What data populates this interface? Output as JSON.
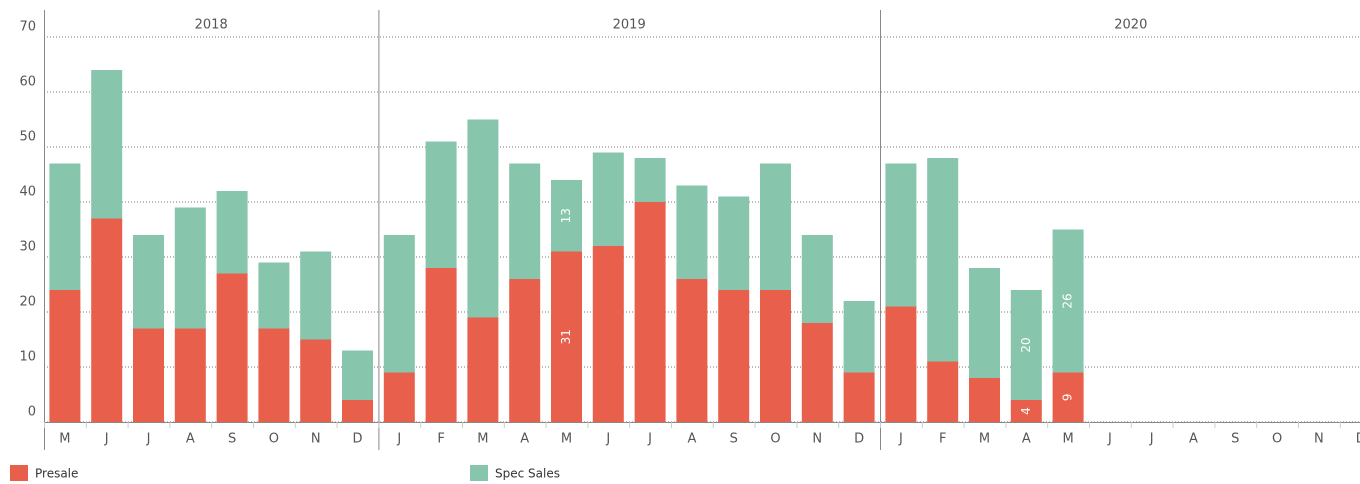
{
  "chart_data": {
    "type": "bar",
    "stacked": true,
    "grid": true,
    "legend": "bottom",
    "ylim": [
      0,
      70
    ],
    "yticks": [
      0,
      10,
      20,
      30,
      40,
      50,
      60,
      70
    ],
    "panels": [
      {
        "title": "2018",
        "categories": [
          "M",
          "J",
          "J",
          "A",
          "S",
          "O",
          "N",
          "D"
        ]
      },
      {
        "title": "2019",
        "categories": [
          "J",
          "F",
          "M",
          "A",
          "M",
          "J",
          "J",
          "A",
          "S",
          "O",
          "N",
          "D"
        ]
      },
      {
        "title": "2020",
        "categories": [
          "J",
          "F",
          "M",
          "A",
          "M",
          "J",
          "J",
          "A",
          "S",
          "O",
          "N",
          "D"
        ]
      }
    ],
    "series": [
      {
        "name": "Presale",
        "color": "#e8604c",
        "values": [
          24,
          37,
          17,
          17,
          27,
          17,
          15,
          4,
          9,
          28,
          19,
          26,
          31,
          32,
          40,
          26,
          24,
          24,
          18,
          9,
          21,
          11,
          8,
          4,
          9,
          null,
          null,
          null,
          null,
          null,
          null,
          null
        ],
        "value_labels": [
          null,
          null,
          null,
          null,
          null,
          null,
          null,
          null,
          null,
          null,
          null,
          null,
          "31",
          null,
          null,
          null,
          null,
          null,
          null,
          null,
          null,
          null,
          null,
          "4",
          "9",
          null,
          null,
          null,
          null,
          null,
          null,
          null
        ]
      },
      {
        "name": "Spec Sales",
        "color": "#88c5ad",
        "values": [
          23,
          27,
          17,
          22,
          15,
          12,
          16,
          9,
          25,
          23,
          36,
          21,
          13,
          17,
          8,
          17,
          17,
          23,
          16,
          13,
          26,
          37,
          20,
          20,
          26,
          null,
          null,
          null,
          null,
          null,
          null,
          null
        ],
        "value_labels": [
          null,
          null,
          null,
          null,
          null,
          null,
          null,
          null,
          null,
          null,
          null,
          null,
          "13",
          null,
          null,
          null,
          null,
          null,
          null,
          null,
          null,
          null,
          null,
          "20",
          "26",
          null,
          null,
          null,
          null,
          null,
          null,
          null
        ]
      }
    ]
  }
}
